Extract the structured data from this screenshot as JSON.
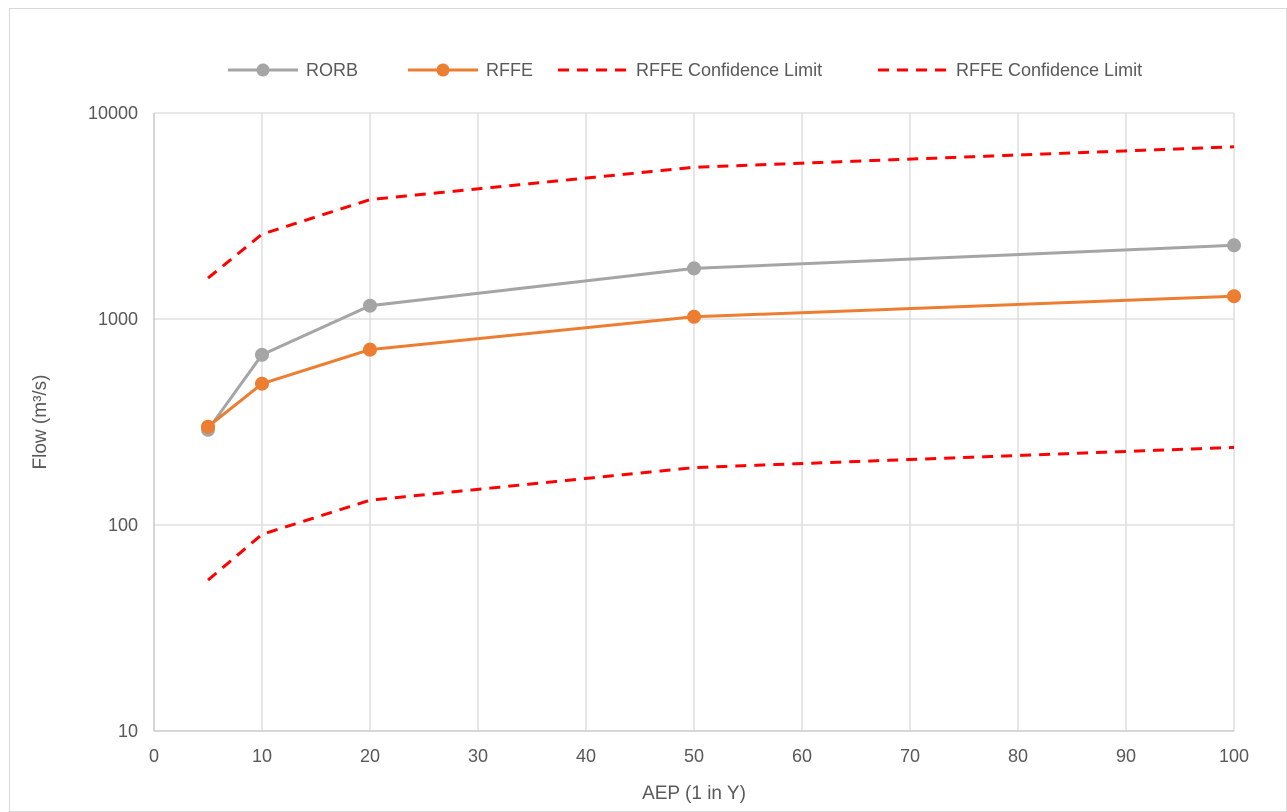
{
  "chart_data": {
    "type": "line",
    "title": "",
    "xlabel": "AEP (1 in Y)",
    "ylabel": "Flow (m³/s)",
    "xlim": [
      0,
      100
    ],
    "ylim": [
      10,
      10000
    ],
    "y_scale": "log",
    "x_ticks": [
      0,
      10,
      20,
      30,
      40,
      50,
      60,
      70,
      80,
      90,
      100
    ],
    "y_ticks": [
      10,
      100,
      1000,
      10000
    ],
    "grid": true,
    "legend_position": "top",
    "series": [
      {
        "name": "RORB",
        "color": "#a5a5a5",
        "style": "solid",
        "markers": true,
        "x": [
          5,
          10,
          20,
          50,
          100
        ],
        "y": [
          290,
          670,
          1160,
          1760,
          2280
        ]
      },
      {
        "name": "RFFE",
        "color": "#ed7d31",
        "style": "solid",
        "markers": true,
        "x": [
          5,
          10,
          20,
          50,
          100
        ],
        "y": [
          300,
          485,
          710,
          1025,
          1290
        ]
      },
      {
        "name": "RFFE Confidence Limit",
        "color": "#ff0000",
        "style": "dashed",
        "markers": false,
        "x": [
          5,
          10,
          20,
          50,
          100
        ],
        "y": [
          1580,
          2580,
          3800,
          5450,
          6850
        ]
      },
      {
        "name": "RFFE Confidence Limit",
        "color": "#ff0000",
        "style": "dashed",
        "markers": false,
        "x": [
          5,
          10,
          20,
          50,
          100
        ],
        "y": [
          54,
          90,
          132,
          190,
          238
        ]
      }
    ]
  }
}
